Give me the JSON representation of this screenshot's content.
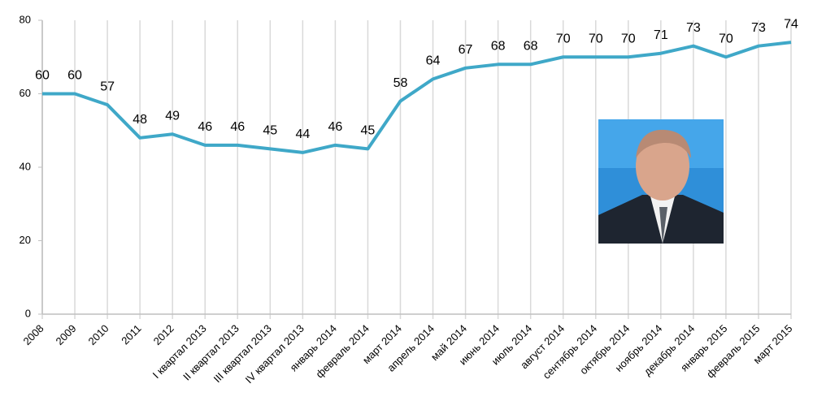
{
  "chart_data": {
    "type": "line",
    "categories": [
      "2008",
      "2009",
      "2010",
      "2011",
      "2012",
      "I квартал 2013",
      "II квартал 2013",
      "III квартал 2013",
      "IV квартал 2013",
      "январь 2014",
      "февраль 2014",
      "март 2014",
      "апрель 2014",
      "май 2014",
      "июнь 2014",
      "июль 2014",
      "август 2014",
      "сентябрь 2014",
      "октябрь 2014",
      "ноябрь 2014",
      "декабрь 2014",
      "январь 2015",
      "февраль 2015",
      "март 2015"
    ],
    "values": [
      60,
      60,
      57,
      48,
      49,
      46,
      46,
      45,
      44,
      46,
      45,
      58,
      64,
      67,
      68,
      68,
      70,
      70,
      70,
      71,
      73,
      70,
      73,
      74
    ],
    "color": "#3fa8c8",
    "ylim": [
      0,
      80
    ],
    "yticks": [
      0,
      20,
      40,
      60,
      80
    ],
    "grid": true
  }
}
